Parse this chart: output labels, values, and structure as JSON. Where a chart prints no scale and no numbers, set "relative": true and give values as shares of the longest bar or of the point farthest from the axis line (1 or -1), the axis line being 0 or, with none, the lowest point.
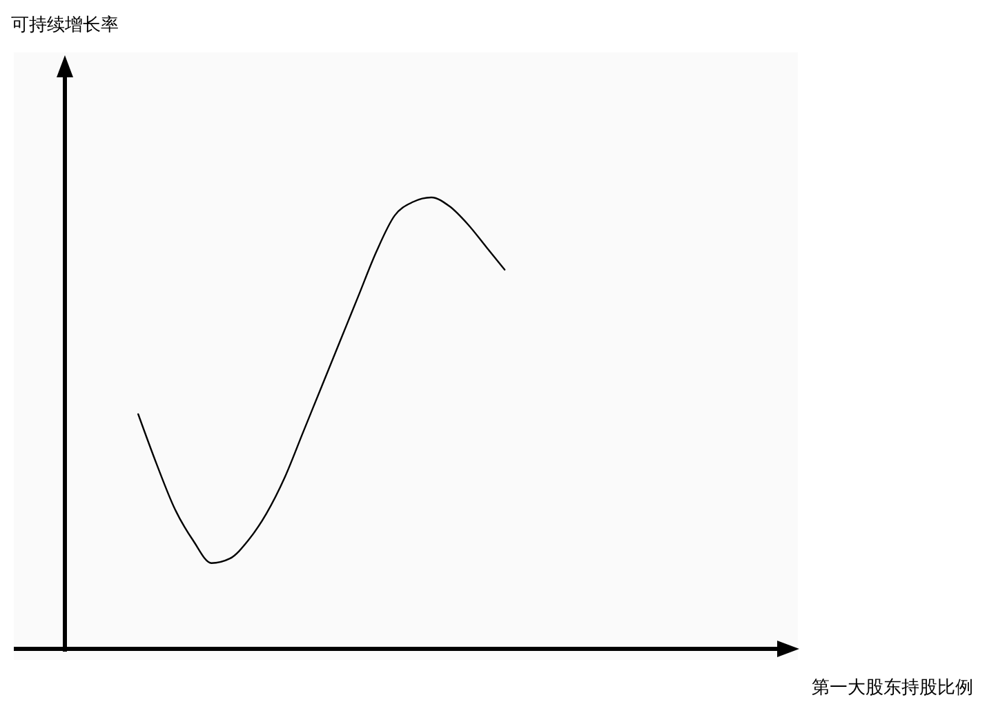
{
  "chart_data": {
    "type": "line",
    "relative": true,
    "xlabel": "第一大股东持股比例",
    "annotations": [
      "可持续增长率"
    ],
    "categories": [
      null,
      null,
      null,
      null,
      null,
      null,
      null,
      null,
      null,
      null,
      null,
      null,
      null,
      null,
      null,
      null,
      null,
      null,
      null,
      null,
      null,
      null,
      null,
      null,
      null,
      null,
      null,
      null,
      null,
      null,
      null,
      null,
      null,
      null,
      null,
      null,
      null,
      null,
      null,
      null,
      null
    ],
    "series": [
      {
        "color": "#000000",
        "values": [
          null,
          null,
          null,
          null,
          0.52,
          0.41,
          0.31,
          0.24,
          0.19,
          0.2,
          0.24,
          0.3,
          0.38,
          0.48,
          0.58,
          0.68,
          0.78,
          0.88,
          0.96,
          0.99,
          1,
          0.98,
          0.94,
          0.89,
          0.84,
          null,
          null,
          null,
          null,
          null,
          null,
          null,
          null,
          null,
          null,
          null,
          null,
          null,
          null,
          null,
          null
        ]
      }
    ]
  }
}
